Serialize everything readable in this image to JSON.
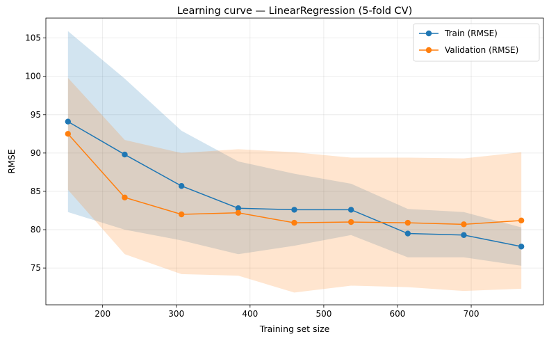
{
  "chart_data": {
    "type": "line",
    "title": "Learning curve — LinearRegression (5-fold CV)",
    "xlabel": "Training set size",
    "ylabel": "RMSE",
    "xlim": [
      123,
      798
    ],
    "ylim": [
      70.2,
      107.6
    ],
    "xticks": [
      200,
      300,
      400,
      500,
      600,
      700
    ],
    "yticks": [
      75,
      80,
      85,
      90,
      95,
      100,
      105
    ],
    "grid": true,
    "legend_position": "top-right",
    "x": [
      153,
      230,
      307,
      384,
      460,
      537,
      614,
      690,
      768
    ],
    "series": [
      {
        "name": "Train (RMSE)",
        "color": "#1f77b4",
        "values": [
          94.1,
          89.8,
          85.7,
          82.8,
          82.6,
          82.6,
          79.5,
          79.3,
          77.8
        ],
        "band_upper": [
          105.9,
          99.7,
          92.9,
          88.9,
          87.3,
          86.0,
          82.7,
          82.3,
          80.3
        ],
        "band_lower": [
          82.3,
          80.0,
          78.6,
          76.8,
          77.9,
          79.3,
          76.4,
          76.4,
          75.3
        ]
      },
      {
        "name": "Validation (RMSE)",
        "color": "#ff7f0e",
        "values": [
          92.5,
          84.2,
          82.0,
          82.2,
          80.9,
          81.0,
          80.9,
          80.7,
          81.2
        ],
        "band_upper": [
          99.8,
          91.7,
          90.0,
          90.5,
          90.1,
          89.4,
          89.4,
          89.3,
          90.1
        ],
        "band_lower": [
          85.2,
          76.8,
          74.2,
          74.0,
          71.8,
          72.7,
          72.5,
          72.0,
          72.3
        ]
      }
    ]
  }
}
